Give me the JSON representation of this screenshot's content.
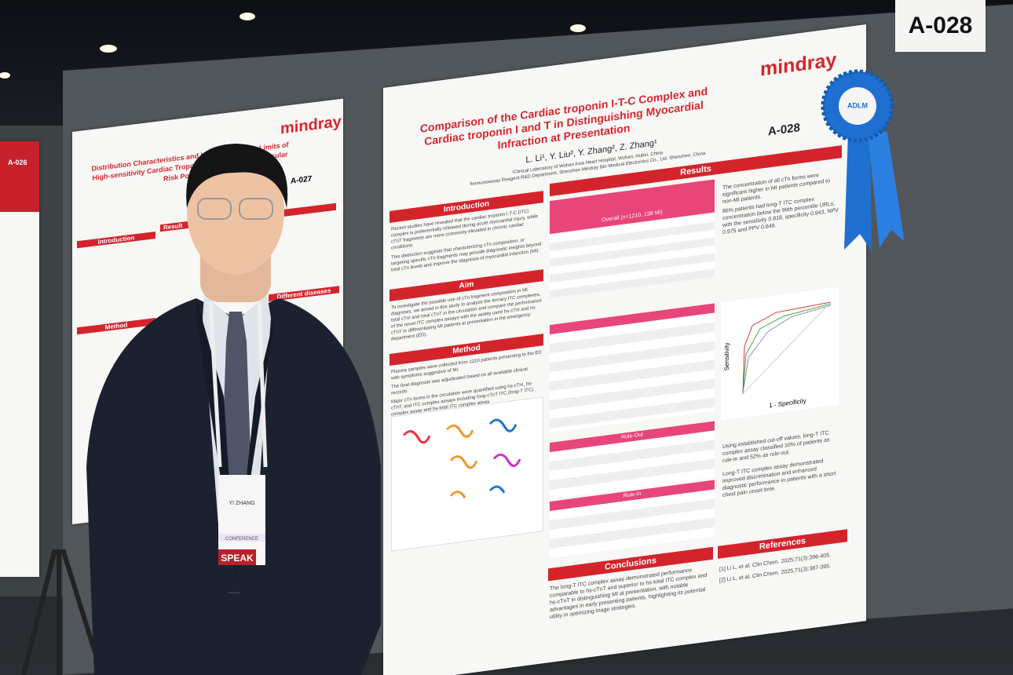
{
  "booth_sign": "A-028",
  "main_poster": {
    "brand": "mindray",
    "poster_id": "A-028",
    "title_lines": [
      "Comparison of the Cardiac troponin I-T-C Complex and",
      "Cardiac troponin I and T in Distinguishing Myocardial",
      "Infraction at Presentation"
    ],
    "authors": "L. Li¹, Y. Liu², Y. Zhang², Z. Zhang¹",
    "affiliations": [
      "¹Clinical Laboratory of Wuhan Asia Heart Hospital, Wuhan, Hubei, China",
      "²Immunoassay Reagent R&D Department, Shenzhen Mindray Bio-Medical Electronics Co., Ltd, Shenzhen, China"
    ],
    "introduction": {
      "heading": "Introduction",
      "paragraphs": [
        "Recent studies have revealed that the cardiac troponin I-T-C (ITC) complex is preferentially released during acute myocardial injury, while cTnT fragments are more commonly elevated in chronic cardiac conditions.",
        "This distinction suggests that characterizing cTn composition, or targeting specific cTn fragments may provide diagnostic insights beyond total cTn levels and improve the diagnosis of myocardial infarction (MI)."
      ]
    },
    "aim": {
      "heading": "Aim",
      "text": "To investigate the possible use of cTn fragment composition in MI diagnosis, we aimed in this study to analyze the ternary ITC complexes, total cTnI and total cTnT in the circulation and compare the performance of the novel ITC complex assays with the widely used hs-cTnI and hs-cTnT in differentiating MI patients at presentation in the emergency department (ED)."
    },
    "method": {
      "heading": "Method",
      "bullets": [
        "Plasma samples were collected from 1210 patients presenting to the ED with symptoms suggestive of MI.",
        "The final diagnosis was adjudicated based on all available clinical records.",
        "Major cTn forms in the circulation were quantified using hs-cTnI, hs-cTnT, and ITC complex assays including long-cTnT ITC (long-T ITC) complex assay and hs-total ITC complex assay."
      ]
    },
    "results": {
      "heading": "Results",
      "table_title": "Overall (n=1210, 138 MI)",
      "bullets": [
        "The concentration of all cTn forms were significant higher in MI patients compared to non-MI patients.",
        "86% patients had long-T ITC complex concentration below the 99th percentile URLs, with the sensitivity 0.818, specificity 0.943, NPV 0.975 and PPV 0.649.",
        "Using established cut-off values, long-T ITC complex assay classified 10% of patients as rule-in and 52% as rule-out.",
        "Long-T ITC complex assay demonstrated improved discrimination and enhanced diagnostic performance in patients with a short chest pain onset time."
      ],
      "rule_out": "Rule-Out",
      "rule_in": "Rule-In",
      "roc_y_label": "Sensitivity",
      "roc_x_label": "1 - Specificity"
    },
    "conclusions": {
      "heading": "Conclusions",
      "text": "The long-T ITC complex assay demonstrated performance comparable to hs-cTnT and superior to hs-total ITC complex and hs-cTnT in distinguishing MI at presentation, with notable advantages in early presenting patients, highlighting its potential utility in optimizing triage strategies."
    },
    "references": {
      "heading": "References",
      "items": [
        "[1] Li L, et al. Clin Chem. 2025;71(3):396-405.",
        "[2] Li L, et al. Clin Chem. 2025;71(3):387-395."
      ]
    }
  },
  "left_poster": {
    "brand": "mindray",
    "poster_id": "A-027",
    "title_lines": [
      "Distribution Characteristics and Upper Reference Limits of",
      "High-sensitivity Cardiac Troponin I in High Cardiovascular Risk Population"
    ],
    "headings": [
      "Introduction",
      "Method",
      "Result",
      "Different diseases"
    ]
  },
  "far_left_poster": {
    "poster_id": "A-026"
  },
  "ribbon": "ADLM",
  "badge": {
    "name": "YI ZHANG",
    "category": "CONFERENCE",
    "banner": "SPEAK"
  }
}
